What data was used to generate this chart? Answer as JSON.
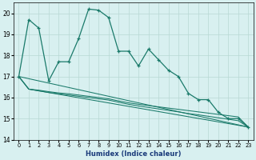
{
  "xlabel": "Humidex (Indice chaleur)",
  "bg_color": "#d8f0f0",
  "grid_color": "#b8d8d4",
  "line_color": "#1a7a6a",
  "xlim": [
    -0.5,
    23.5
  ],
  "ylim": [
    14,
    20.5
  ],
  "yticks": [
    14,
    15,
    16,
    17,
    18,
    19,
    20
  ],
  "xticks": [
    0,
    1,
    2,
    3,
    4,
    5,
    6,
    7,
    8,
    9,
    10,
    11,
    12,
    13,
    14,
    15,
    16,
    17,
    18,
    19,
    20,
    21,
    22,
    23
  ],
  "main_line_x": [
    0,
    1,
    2,
    3,
    4,
    5,
    6,
    7,
    8,
    9,
    10,
    11,
    12,
    13,
    14,
    15,
    16,
    17,
    18,
    19,
    20,
    21,
    22,
    23
  ],
  "main_line_y": [
    17.0,
    19.7,
    19.3,
    16.8,
    17.7,
    17.7,
    18.8,
    20.2,
    20.15,
    19.8,
    18.2,
    18.2,
    17.5,
    18.3,
    17.8,
    17.3,
    17.0,
    16.2,
    15.9,
    15.9,
    15.3,
    15.0,
    15.0,
    14.6
  ],
  "trend1_x": [
    0,
    23
  ],
  "trend1_y": [
    17.0,
    14.6
  ],
  "trend2_x": [
    0,
    1,
    23
  ],
  "trend2_y": [
    17.0,
    16.4,
    14.6
  ],
  "trend3_x": [
    0,
    1,
    2,
    3,
    4,
    5,
    6,
    7,
    8,
    9,
    10,
    11,
    12,
    13,
    14,
    15,
    16,
    17,
    18,
    19,
    20,
    21,
    22,
    23
  ],
  "trend3_y": [
    17.0,
    16.4,
    16.35,
    16.28,
    16.22,
    16.18,
    16.12,
    16.06,
    16.0,
    15.94,
    15.84,
    15.75,
    15.68,
    15.62,
    15.56,
    15.5,
    15.44,
    15.38,
    15.32,
    15.26,
    15.2,
    15.14,
    15.08,
    14.6
  ],
  "trend4_x": [
    0,
    1,
    2,
    3,
    4,
    5,
    6,
    7,
    8,
    9,
    10,
    11,
    12,
    13,
    14,
    15,
    16,
    17,
    18,
    19,
    20,
    21,
    22,
    23
  ],
  "trend4_y": [
    17.0,
    16.4,
    16.32,
    16.24,
    16.18,
    16.12,
    16.06,
    16.0,
    15.94,
    15.88,
    15.78,
    15.68,
    15.6,
    15.53,
    15.46,
    15.39,
    15.32,
    15.24,
    15.18,
    15.11,
    15.04,
    14.97,
    14.9,
    14.6
  ]
}
